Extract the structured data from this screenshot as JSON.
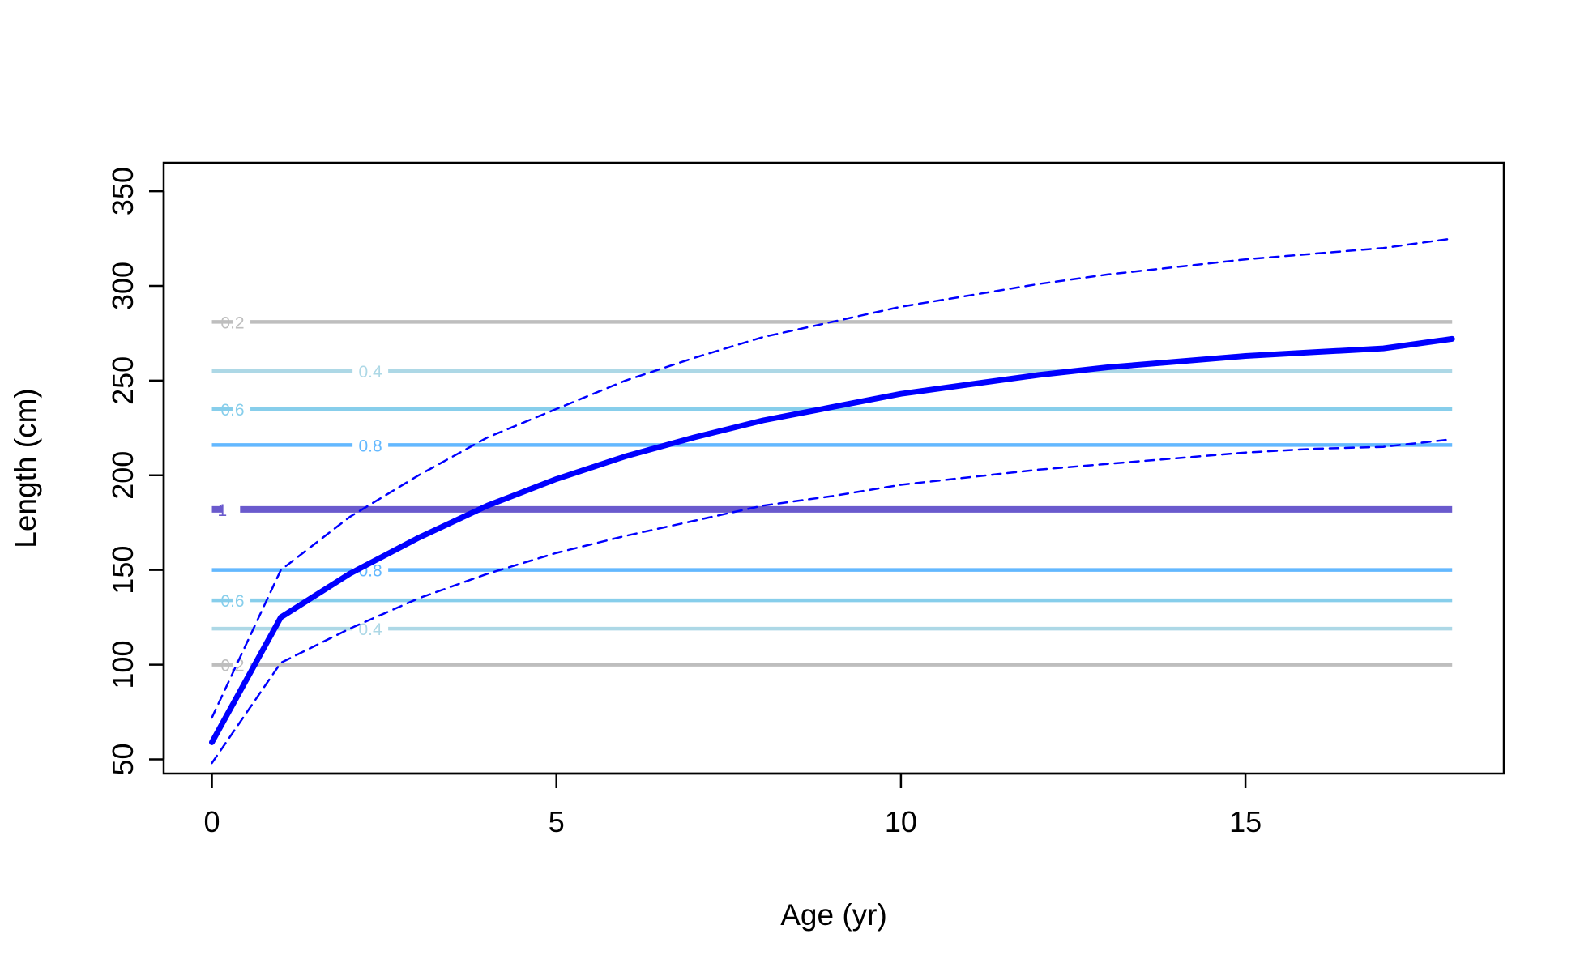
{
  "chart_data": {
    "type": "line",
    "title": "",
    "xlabel": "Age (yr)",
    "ylabel": "Length (cm)",
    "xlim": [
      -0.7,
      18.75
    ],
    "ylim": [
      42.5,
      365
    ],
    "x_ticks": [
      0,
      5,
      10,
      15
    ],
    "y_ticks": [
      50,
      100,
      150,
      200,
      250,
      300,
      350
    ],
    "grid": false,
    "legend": "none",
    "series": [
      {
        "style": "solid-thick",
        "color": "#0000ff",
        "x": [
          0,
          1,
          2,
          3,
          4,
          5,
          6,
          7,
          8,
          9,
          10,
          11,
          12,
          13,
          14,
          15,
          16,
          17,
          18
        ],
        "y": [
          59,
          125,
          148,
          167,
          184,
          198,
          210,
          220,
          229,
          236,
          243,
          248,
          253,
          257,
          260,
          263,
          265,
          267,
          272
        ]
      },
      {
        "style": "dashed",
        "color": "#0000ff",
        "x": [
          0,
          1,
          2,
          3,
          4,
          5,
          6,
          7,
          8,
          9,
          10,
          11,
          12,
          13,
          14,
          15,
          16,
          17,
          18
        ],
        "y": [
          72,
          150,
          178,
          200,
          220,
          235,
          250,
          262,
          273,
          281,
          289,
          295,
          301,
          306,
          310,
          314,
          317,
          320,
          325
        ]
      },
      {
        "style": "dashed",
        "color": "#0000ff",
        "x": [
          0,
          1,
          2,
          3,
          4,
          5,
          6,
          7,
          8,
          9,
          10,
          11,
          12,
          13,
          14,
          15,
          16,
          17,
          18
        ],
        "y": [
          48,
          101,
          119,
          135,
          148,
          159,
          168,
          176,
          184,
          189,
          195,
          199,
          203,
          206,
          209,
          212,
          214,
          215,
          219
        ]
      }
    ],
    "contours": [
      {
        "label": "0.2",
        "y": 281,
        "color": "#bebebe",
        "label_x": 0.3
      },
      {
        "label": "0.4",
        "y": 255,
        "color": "#add8e6",
        "label_x": 2.3
      },
      {
        "label": "0.6",
        "y": 235,
        "color": "#87ceeb",
        "label_x": 0.3
      },
      {
        "label": "0.8",
        "y": 216,
        "color": "#63b8ff",
        "label_x": 2.3
      },
      {
        "label": "1",
        "y": 182,
        "color": "#6a5acd",
        "label_x": 0.15
      },
      {
        "label": "0.8",
        "y": 150,
        "color": "#63b8ff",
        "label_x": 2.3
      },
      {
        "label": "0.6",
        "y": 134,
        "color": "#87ceeb",
        "label_x": 0.3
      },
      {
        "label": "0.4",
        "y": 119,
        "color": "#add8e6",
        "label_x": 2.3
      },
      {
        "label": "0.2",
        "y": 100,
        "color": "#bebebe",
        "label_x": 0.3
      }
    ],
    "contour_x_range": [
      0,
      18
    ]
  }
}
